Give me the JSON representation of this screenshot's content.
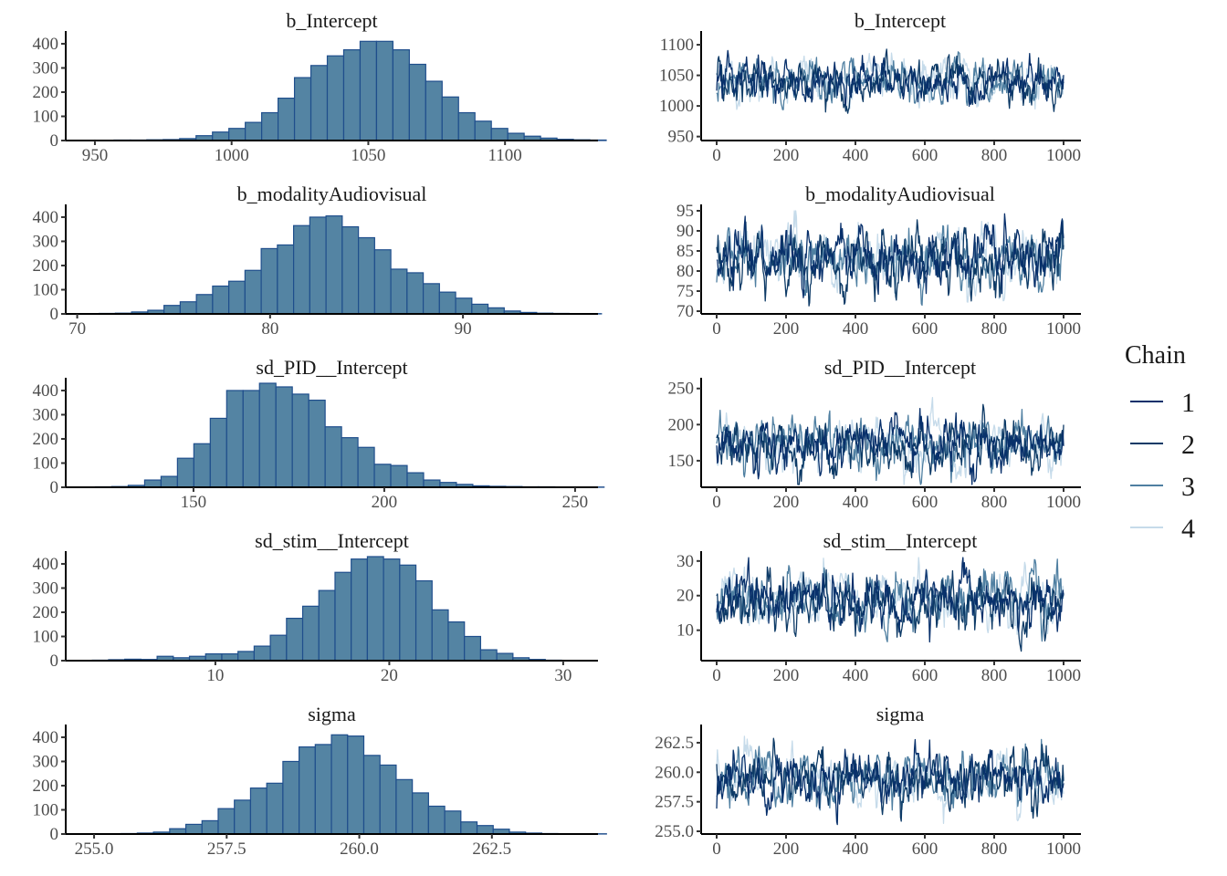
{
  "chart_data": {
    "type": "mixed",
    "description": "MCMC diagnostics: posterior histograms (left) and trace plots (right) per parameter",
    "colors": {
      "hist_fill": "#5484a3",
      "hist_stroke": "#1f4e8c",
      "chains": [
        "#08306b",
        "#0d3a66",
        "#4f7fa1",
        "#c6dbea"
      ]
    },
    "legend": {
      "title": "Chain",
      "entries": [
        "1",
        "2",
        "3",
        "4"
      ],
      "placement": "right"
    },
    "trace_x": {
      "range": [
        0,
        1000
      ],
      "ticks": [
        0,
        200,
        400,
        600,
        800,
        1000
      ],
      "tick_labels": [
        "0",
        "200",
        "400",
        "600",
        "800",
        "1000"
      ]
    },
    "hist_y": {
      "ticks": [
        0,
        100,
        200,
        300,
        400
      ],
      "tick_labels": [
        "0",
        "100",
        "200",
        "300",
        "400"
      ],
      "range": [
        0,
        430
      ]
    },
    "parameters": [
      {
        "name": "b_Intercept",
        "hist": {
          "xlim": [
            940,
            1134
          ],
          "xticks": [
            950,
            1000,
            1050,
            1100
          ],
          "xtick_labels": [
            "950",
            "1000",
            "1050",
            "1100"
          ],
          "bin_start": 945,
          "bin_width": 6.0,
          "counts": [
            1,
            1,
            2,
            2,
            3,
            4,
            8,
            20,
            35,
            50,
            75,
            115,
            175,
            260,
            310,
            350,
            375,
            410,
            410,
            375,
            315,
            245,
            180,
            115,
            80,
            50,
            30,
            18,
            10,
            5,
            3,
            2
          ]
        },
        "trace": {
          "ylim": [
            948,
            1112
          ],
          "yticks": [
            950,
            1000,
            1050,
            1100
          ],
          "ytick_labels": [
            "950",
            "1000",
            "1050",
            "1100"
          ],
          "mean": 1040,
          "sd": 18,
          "spread_note": "chains overlapping, mixing well"
        }
      },
      {
        "name": "b_modalityAudiovisual",
        "hist": {
          "xlim": [
            69.5,
            97
          ],
          "xticks": [
            70,
            80,
            90
          ],
          "xtick_labels": [
            "70",
            "80",
            "90"
          ],
          "bin_start": 70.3,
          "bin_width": 0.84,
          "counts": [
            1,
            2,
            3,
            8,
            15,
            35,
            50,
            80,
            115,
            135,
            180,
            270,
            285,
            365,
            400,
            405,
            360,
            315,
            265,
            185,
            170,
            125,
            90,
            65,
            40,
            25,
            12,
            6,
            3,
            2,
            1,
            1
          ]
        },
        "trace": {
          "ylim": [
            70,
            95
          ],
          "yticks": [
            70,
            75,
            80,
            85,
            90,
            95
          ],
          "ytick_labels": [
            "70",
            "75",
            "80",
            "85",
            "90",
            "95"
          ],
          "mean": 82.7,
          "sd": 3.8
        }
      },
      {
        "name": "sd_PID__Intercept",
        "hist": {
          "xlim": [
            117,
            256
          ],
          "xticks": [
            150,
            200,
            250
          ],
          "xtick_labels": [
            "150",
            "200",
            "250"
          ],
          "bin_start": 120,
          "bin_width": 4.3,
          "counts": [
            1,
            2,
            3,
            8,
            30,
            45,
            120,
            180,
            285,
            400,
            400,
            430,
            415,
            385,
            360,
            250,
            205,
            165,
            95,
            90,
            60,
            30,
            20,
            12,
            6,
            4,
            3,
            2,
            2,
            1,
            1,
            1
          ]
        },
        "trace": {
          "ylim": [
            117,
            256
          ],
          "yticks": [
            150,
            200,
            250
          ],
          "ytick_labels": [
            "150",
            "200",
            "250"
          ],
          "mean": 170,
          "sd": 18
        }
      },
      {
        "name": "sd_stim__Intercept",
        "hist": {
          "xlim": [
            1.5,
            32
          ],
          "xticks": [
            10,
            20,
            30
          ],
          "xtick_labels": [
            "10",
            "20",
            "30"
          ],
          "bin_start": 2.0,
          "bin_width": 0.93,
          "counts": [
            1,
            2,
            4,
            6,
            5,
            18,
            12,
            18,
            28,
            28,
            38,
            60,
            105,
            175,
            225,
            290,
            365,
            420,
            430,
            420,
            395,
            330,
            210,
            160,
            100,
            45,
            30,
            12,
            5,
            2,
            1,
            1
          ]
        },
        "trace": {
          "ylim": [
            2,
            31
          ],
          "yticks": [
            10,
            20,
            30
          ],
          "ytick_labels": [
            "10",
            "20",
            "30"
          ],
          "mean": 18.5,
          "sd": 4
        }
      },
      {
        "name": "sigma",
        "hist": {
          "xlim": [
            254.5,
            264.5
          ],
          "xticks": [
            255.0,
            257.5,
            260.0,
            262.5
          ],
          "xtick_labels": [
            "255.0",
            "257.5",
            "260.0",
            "262.5"
          ],
          "bin_start": 254.9,
          "bin_width": 0.305,
          "counts": [
            1,
            1,
            2,
            4,
            8,
            22,
            40,
            55,
            105,
            140,
            190,
            210,
            300,
            360,
            370,
            410,
            405,
            325,
            285,
            225,
            170,
            115,
            95,
            50,
            35,
            20,
            8,
            4,
            2,
            1,
            1,
            1
          ]
        },
        "trace": {
          "ylim": [
            255,
            263.5
          ],
          "yticks": [
            255.0,
            257.5,
            260.0,
            262.5
          ],
          "ytick_labels": [
            "255.0",
            "257.5",
            "260.0",
            "262.5"
          ],
          "mean": 259.4,
          "sd": 1.15
        }
      }
    ]
  }
}
